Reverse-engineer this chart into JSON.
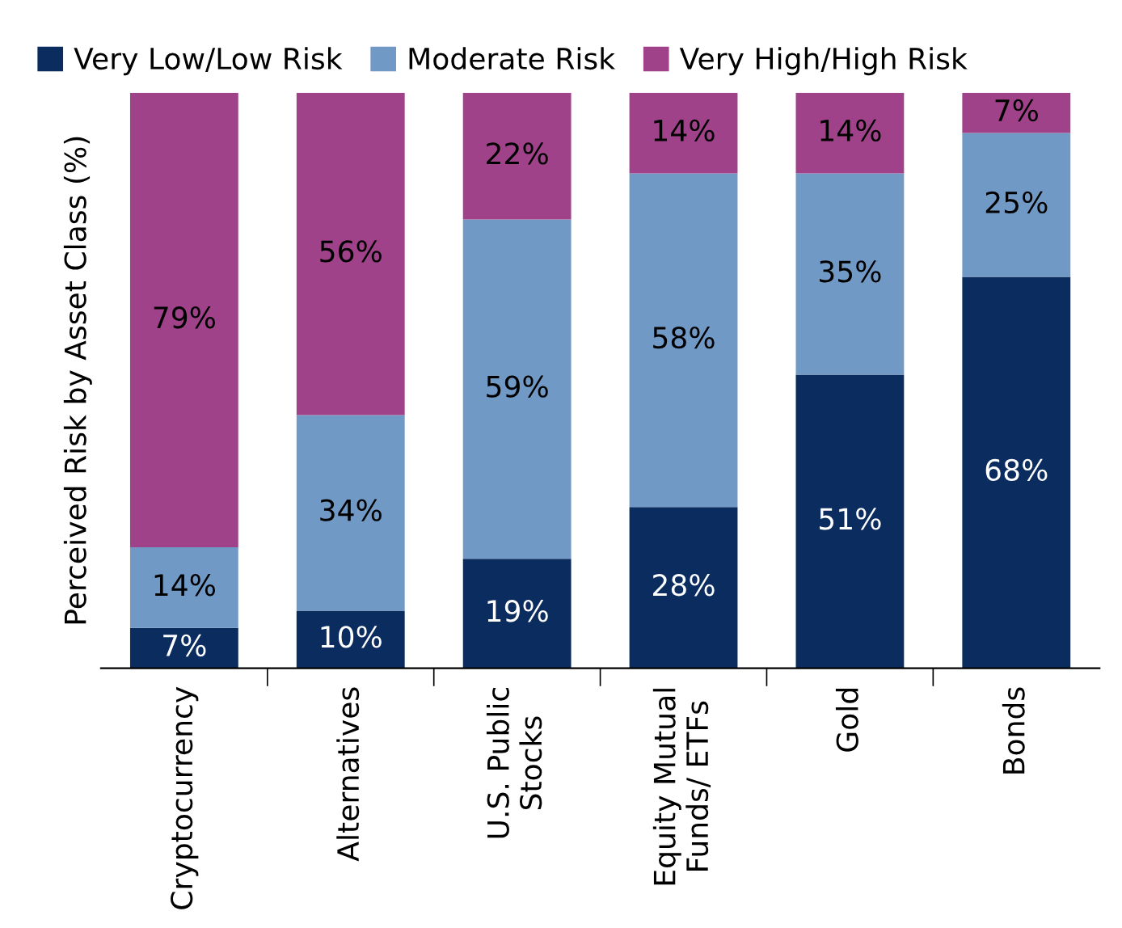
{
  "chart_data": {
    "type": "bar",
    "stacked": true,
    "ylabel": "Perceived Risk by Asset Class (%)",
    "categories": [
      "Cryptocurrency",
      "Alternatives",
      "U.S. Public\nStocks",
      "Equity Mutual\nFunds/ ETFs",
      "Gold",
      "Bonds"
    ],
    "series": [
      {
        "name": "Very Low/Low Risk",
        "color": "#0b2c5f",
        "values": [
          7,
          10,
          19,
          28,
          51,
          68
        ],
        "value_labels": [
          "7%",
          "10%",
          "19%",
          "28%",
          "51%",
          "68%"
        ]
      },
      {
        "name": "Moderate Risk",
        "color": "#7199c6",
        "values": [
          14,
          34,
          59,
          58,
          35,
          25
        ],
        "value_labels": [
          "14%",
          "34%",
          "59%",
          "58%",
          "35%",
          "25%"
        ]
      },
      {
        "name": "Very High/High Risk",
        "color": "#a04289",
        "values": [
          79,
          56,
          22,
          14,
          14,
          7
        ],
        "value_labels": [
          "79%",
          "56%",
          "22%",
          "14%",
          "14%",
          "7%"
        ]
      }
    ],
    "ylim": [
      0,
      100
    ],
    "legend": "top",
    "grid": false
  }
}
